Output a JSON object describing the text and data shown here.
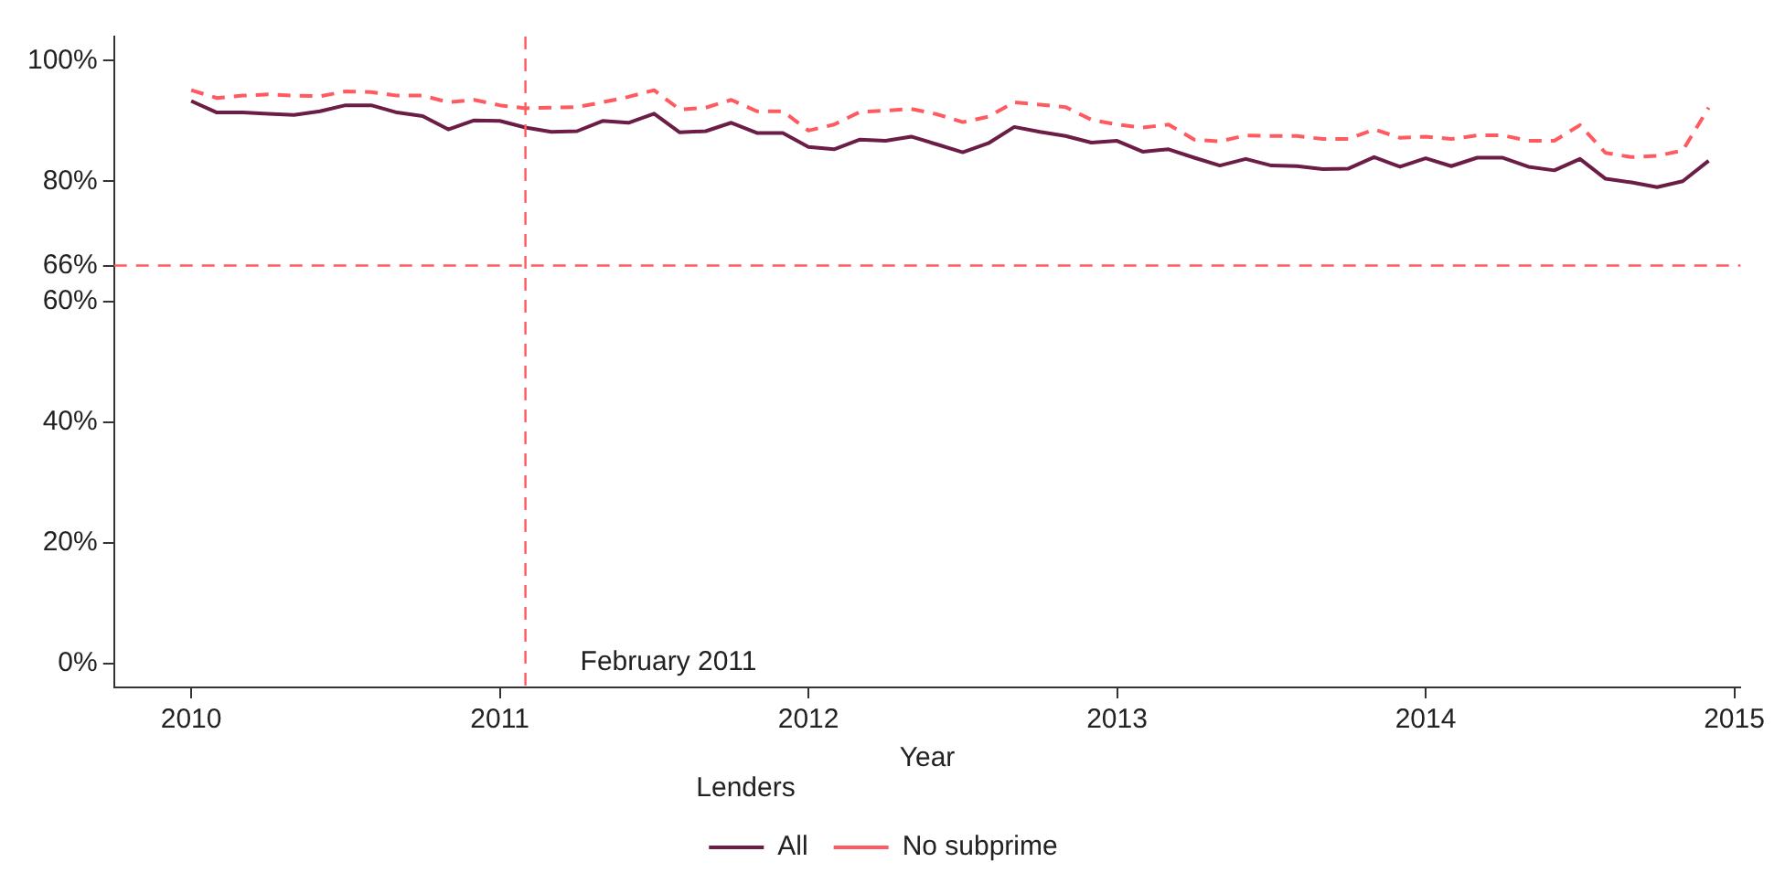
{
  "chart_data": {
    "type": "line",
    "xlabel": "Year",
    "legend_title": "Lenders",
    "legend": "bottom",
    "grid": false,
    "marker": "none",
    "xlim": [
      2009.75,
      2015.02
    ],
    "xticks": [
      2010,
      2011,
      2012,
      2013,
      2014,
      2015
    ],
    "ylim": [
      -4,
      104
    ],
    "yticks": [
      {
        "value": 0,
        "label": "0%"
      },
      {
        "value": 20,
        "label": "20%"
      },
      {
        "value": 40,
        "label": "40%"
      },
      {
        "value": 60,
        "label": "60%"
      },
      {
        "value": 66,
        "label": "66%"
      },
      {
        "value": 80,
        "label": "80%"
      },
      {
        "value": 100,
        "label": "100%"
      }
    ],
    "x": [
      2010,
      2010.083,
      2010.167,
      2010.25,
      2010.333,
      2010.417,
      2010.5,
      2010.583,
      2010.667,
      2010.75,
      2010.833,
      2010.917,
      2011,
      2011.083,
      2011.167,
      2011.25,
      2011.333,
      2011.417,
      2011.5,
      2011.583,
      2011.667,
      2011.75,
      2011.833,
      2011.917,
      2012,
      2012.083,
      2012.167,
      2012.25,
      2012.333,
      2012.417,
      2012.5,
      2012.583,
      2012.667,
      2012.75,
      2012.833,
      2012.917,
      2013,
      2013.083,
      2013.167,
      2013.25,
      2013.333,
      2013.417,
      2013.5,
      2013.583,
      2013.667,
      2013.75,
      2013.833,
      2013.917,
      2014,
      2014.083,
      2014.167,
      2014.25,
      2014.333,
      2014.417,
      2014.5,
      2014.583,
      2014.667,
      2014.75,
      2014.833,
      2014.917
    ],
    "series": [
      {
        "name": "All",
        "color": "#6b1d45",
        "line_style": "solid",
        "values": [
          93.3,
          91.4,
          91.4,
          91.2,
          91.0,
          91.6,
          92.6,
          92.6,
          91.4,
          90.8,
          88.6,
          90.1,
          90.0,
          88.9,
          88.2,
          88.3,
          90.0,
          89.7,
          91.2,
          88.1,
          88.3,
          89.7,
          88.0,
          88.0,
          85.7,
          85.3,
          86.9,
          86.7,
          87.4,
          86.1,
          84.8,
          86.3,
          89.0,
          88.2,
          87.5,
          86.4,
          86.7,
          84.9,
          85.3,
          83.9,
          82.6,
          83.7,
          82.6,
          82.5,
          82.0,
          82.1,
          84.0,
          82.4,
          83.8,
          82.5,
          83.9,
          83.9,
          82.4,
          81.8,
          83.7,
          80.4,
          79.8,
          79.0,
          80.0,
          83.4
        ]
      },
      {
        "name": "No subprime",
        "color": "#ff5a5f",
        "line_style": "dashed",
        "values": [
          95.1,
          93.8,
          94.2,
          94.4,
          94.2,
          94.1,
          94.9,
          94.8,
          94.2,
          94.2,
          93.1,
          93.5,
          92.6,
          92.1,
          92.2,
          92.3,
          93.1,
          94.0,
          95.1,
          91.9,
          92.2,
          93.5,
          91.6,
          91.6,
          88.4,
          89.4,
          91.5,
          91.7,
          92.0,
          91.1,
          89.8,
          90.7,
          93.1,
          92.7,
          92.3,
          90.2,
          89.4,
          88.9,
          89.4,
          86.9,
          86.6,
          87.6,
          87.5,
          87.5,
          87.0,
          87.0,
          88.6,
          87.2,
          87.4,
          87.0,
          87.6,
          87.6,
          86.7,
          86.7,
          89.3,
          84.7,
          84.0,
          84.2,
          85.1,
          92.2
        ]
      }
    ],
    "ref_lines": [
      {
        "axis": "y",
        "value": 66,
        "color": "#ff5a5f",
        "line_style": "dashed"
      },
      {
        "axis": "x",
        "value": 2011.083,
        "label": "February 2011",
        "color": "#ff5a5f",
        "line_style": "dashed"
      }
    ]
  }
}
